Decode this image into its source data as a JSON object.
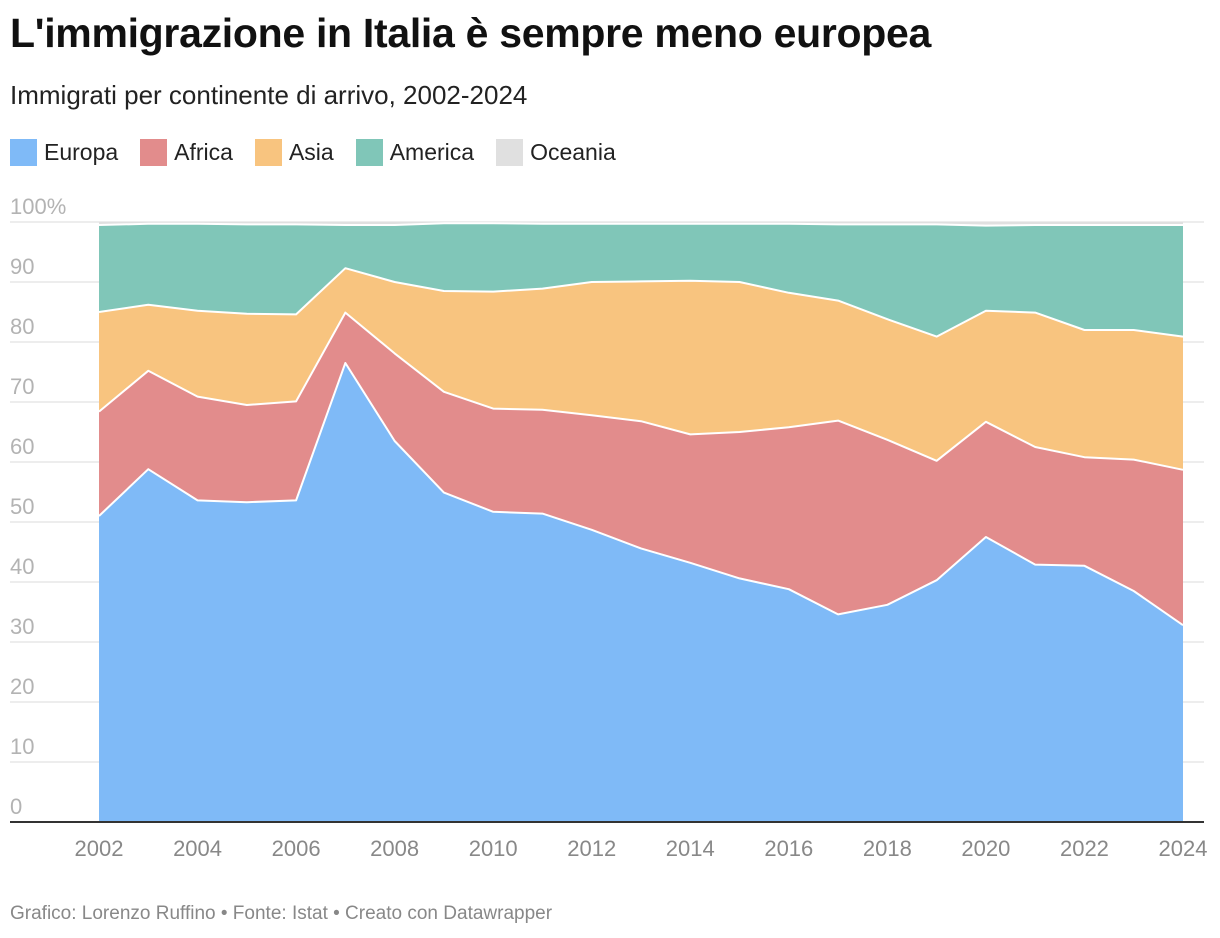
{
  "title": "L'immigrazione in Italia è sempre meno europea",
  "subtitle": "Immigrati per continente di arrivo, 2002-2024",
  "legend": [
    {
      "label": "Europa",
      "color": "#7fbaf7"
    },
    {
      "label": "Africa",
      "color": "#e28c8c"
    },
    {
      "label": "Asia",
      "color": "#f8c47f"
    },
    {
      "label": "America",
      "color": "#80c6b8"
    },
    {
      "label": "Oceania",
      "color": "#e0e0e0"
    }
  ],
  "footer": "Grafico: Lorenzo Ruffino • Fonte: Istat • Creato con Datawrapper",
  "chart_data": {
    "type": "area",
    "stacked": true,
    "title": "L'immigrazione in Italia è sempre meno europea",
    "subtitle": "Immigrati per continente di arrivo, 2002-2024",
    "xlabel": "",
    "ylabel": "",
    "ylim": [
      0,
      100
    ],
    "y_ticks": [
      "0",
      "10",
      "20",
      "30",
      "40",
      "50",
      "60",
      "70",
      "80",
      "90",
      "100%"
    ],
    "x_ticks": [
      "2002",
      "2004",
      "2006",
      "2008",
      "2010",
      "2012",
      "2014",
      "2016",
      "2018",
      "2020",
      "2022",
      "2024"
    ],
    "x": [
      2002,
      2003,
      2004,
      2005,
      2006,
      2007,
      2008,
      2009,
      2010,
      2011,
      2012,
      2013,
      2014,
      2015,
      2016,
      2017,
      2018,
      2019,
      2020,
      2021,
      2022,
      2023,
      2024
    ],
    "series": [
      {
        "name": "Europa",
        "color": "#7fbaf7",
        "values": [
          51.0,
          58.8,
          53.6,
          53.3,
          53.6,
          76.5,
          63.5,
          54.9,
          51.7,
          51.4,
          48.7,
          45.6,
          43.2,
          40.6,
          38.8,
          34.6,
          36.2,
          40.3,
          47.5,
          42.9,
          42.7,
          38.5,
          32.8
        ]
      },
      {
        "name": "Africa",
        "color": "#e28c8c",
        "values": [
          17.4,
          16.4,
          17.3,
          16.2,
          16.5,
          8.4,
          14.6,
          16.8,
          17.2,
          17.3,
          19.1,
          21.2,
          21.4,
          24.4,
          27.0,
          32.3,
          27.5,
          19.9,
          19.2,
          19.6,
          18.1,
          21.9,
          25.9
        ]
      },
      {
        "name": "Asia",
        "color": "#f8c47f",
        "values": [
          16.6,
          11.0,
          14.3,
          15.2,
          14.5,
          7.4,
          11.9,
          16.8,
          19.5,
          20.2,
          22.2,
          23.3,
          25.6,
          25.0,
          22.4,
          20.0,
          20.1,
          20.7,
          18.5,
          22.4,
          21.2,
          21.6,
          22.2
        ]
      },
      {
        "name": "America",
        "color": "#80c6b8",
        "values": [
          14.5,
          13.5,
          14.5,
          14.9,
          15.0,
          7.2,
          9.5,
          11.3,
          11.4,
          10.8,
          9.7,
          9.6,
          9.5,
          9.7,
          11.5,
          12.7,
          15.8,
          18.7,
          14.2,
          14.6,
          17.5,
          17.5,
          18.6
        ]
      },
      {
        "name": "Oceania",
        "color": "#e0e0e0",
        "values": [
          0.5,
          0.3,
          0.3,
          0.4,
          0.4,
          0.5,
          0.5,
          0.2,
          0.2,
          0.3,
          0.3,
          0.3,
          0.3,
          0.3,
          0.3,
          0.4,
          0.4,
          0.4,
          0.6,
          0.5,
          0.5,
          0.5,
          0.5
        ]
      }
    ]
  }
}
